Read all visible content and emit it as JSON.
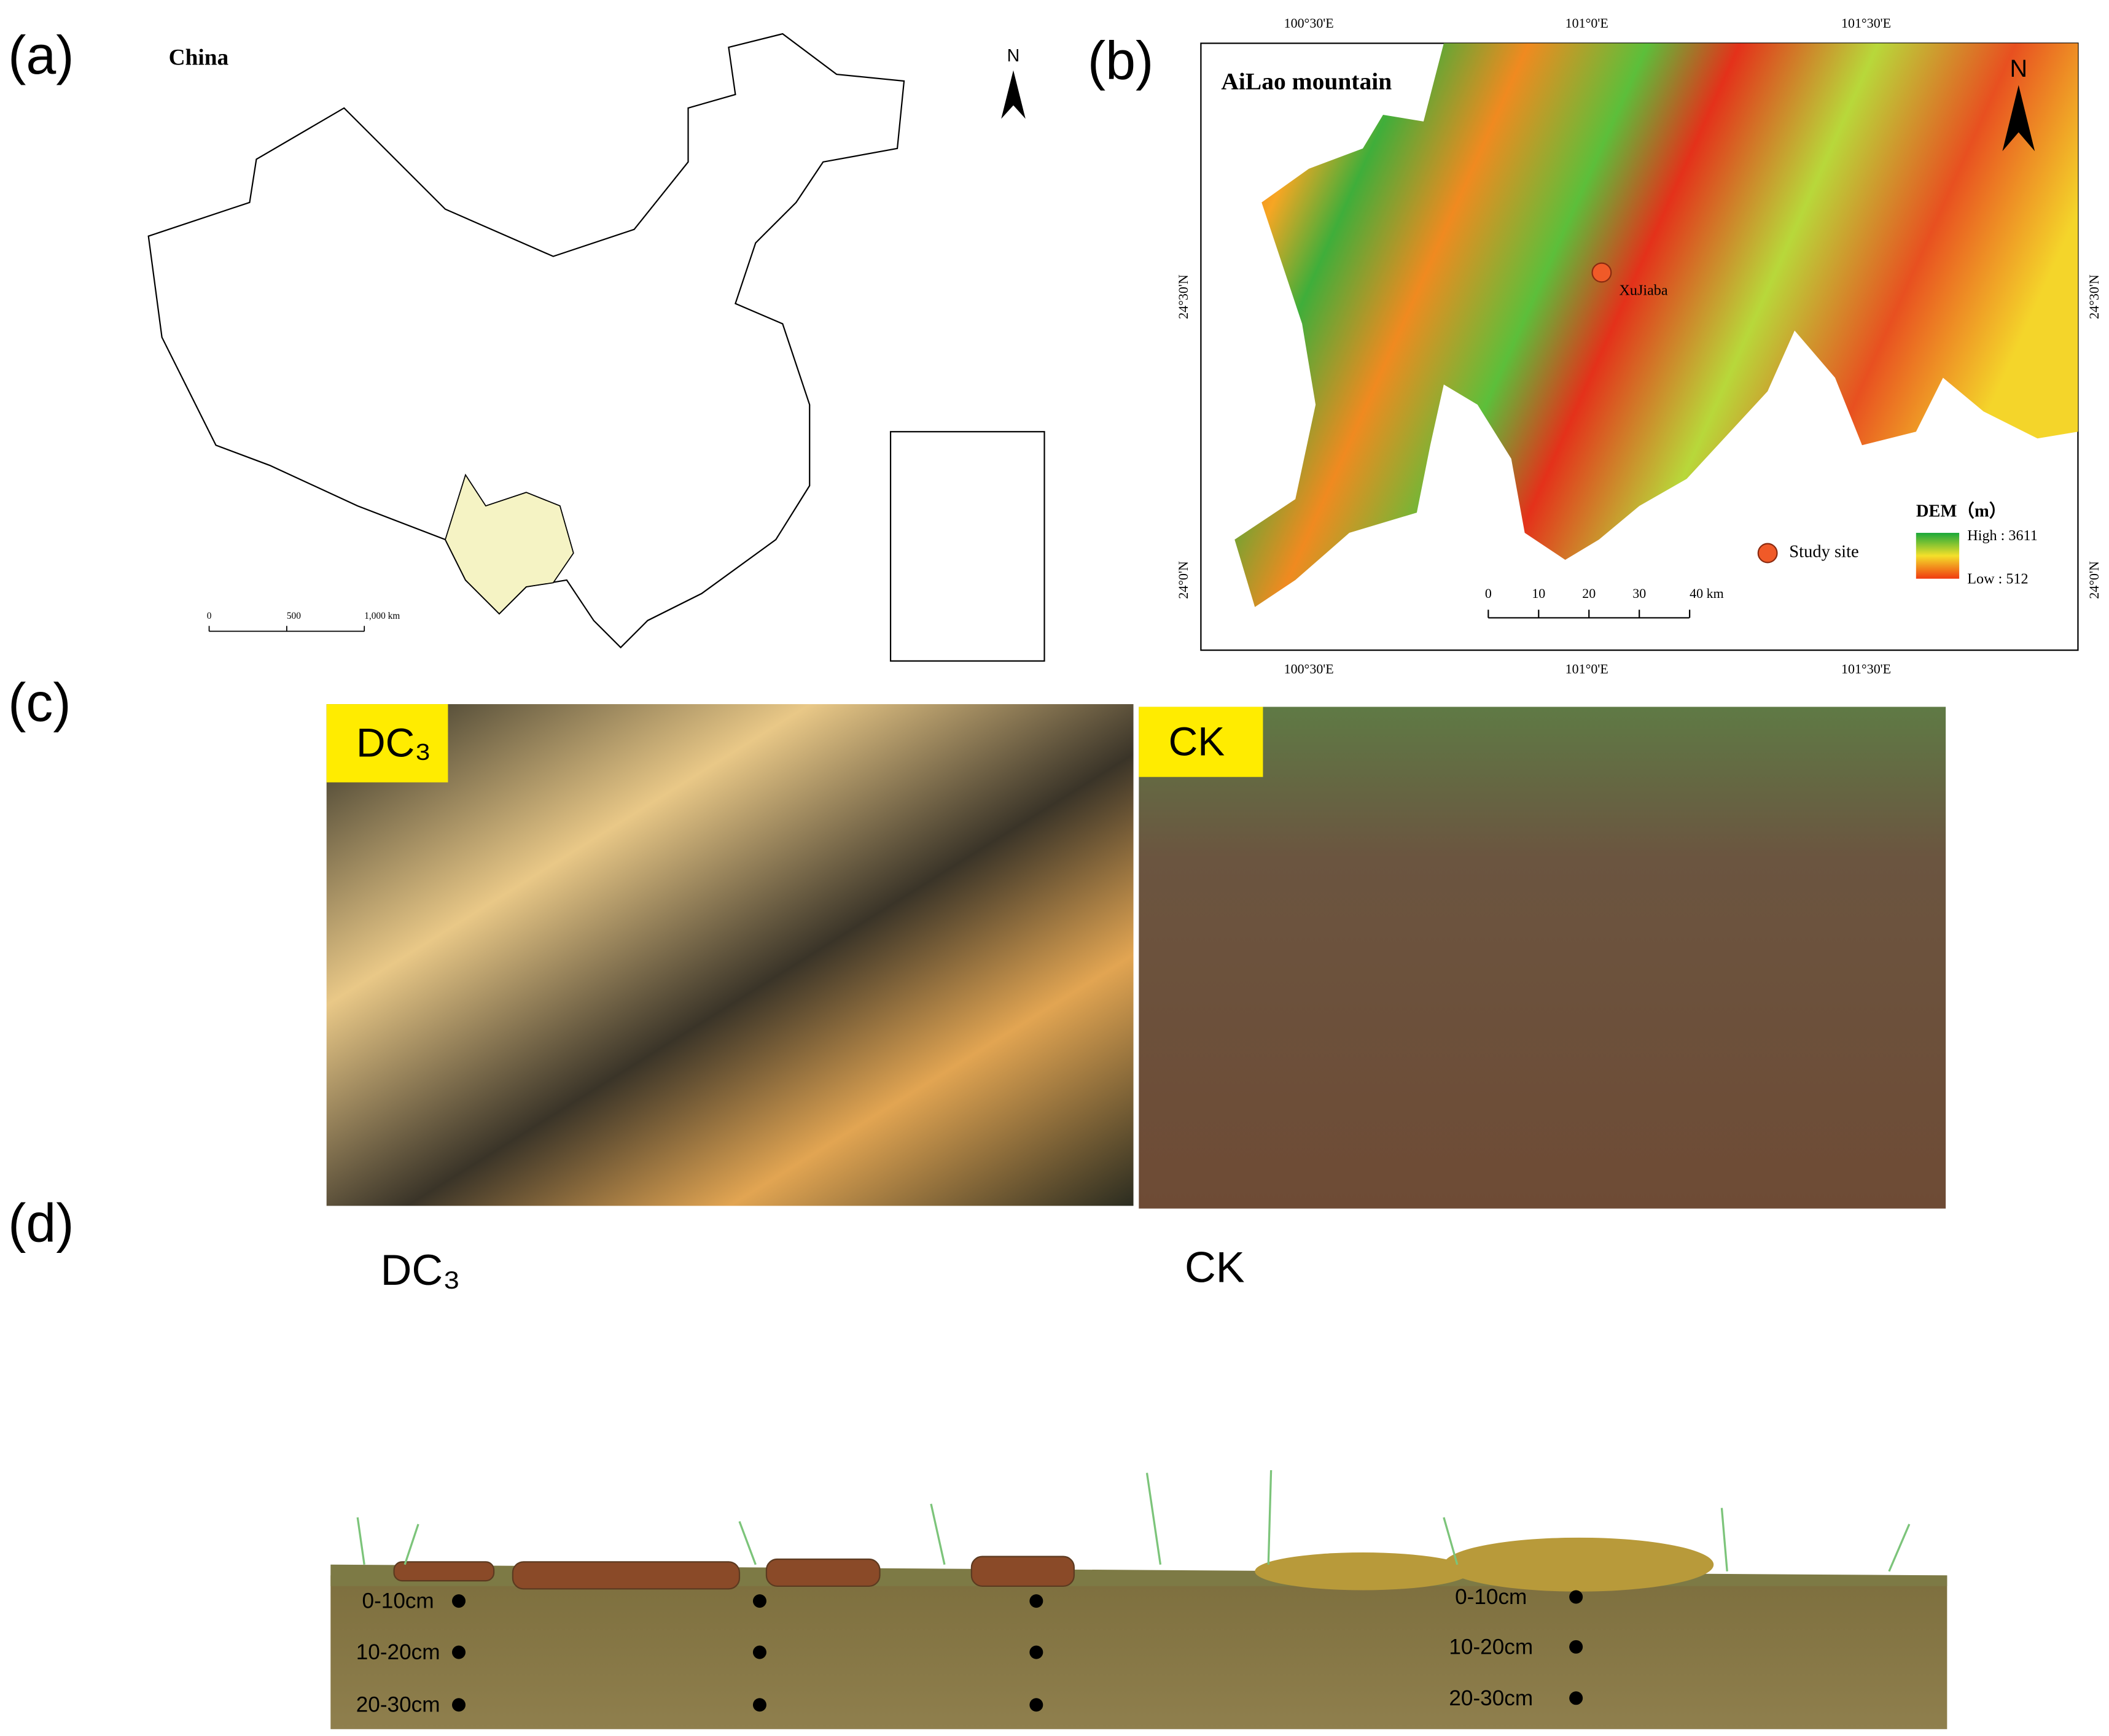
{
  "panel_a": {
    "label": "(a)",
    "title": "China",
    "north": "N",
    "scale_bar": [
      "0",
      "500",
      "1,000 km"
    ]
  },
  "panel_b": {
    "label": "(b)",
    "title": "AiLao mountain",
    "north": "N",
    "top_longitudes": [
      "100°30'E",
      "101°0'E",
      "101°30'E"
    ],
    "bottom_longitudes": [
      "100°30'E",
      "101°0'E",
      "101°30'E"
    ],
    "left_latitudes": [
      "24°30'N",
      "24°0'N"
    ],
    "right_latitudes": [
      "24°30'N",
      "24°0'N"
    ],
    "site": "XuJiaba",
    "legend": {
      "study_site": "Study site",
      "dem_title": "DEM（m）",
      "high": "High : 3611",
      "low": "Low : 512"
    },
    "scale_bar": [
      "0",
      "10",
      "20",
      "30",
      "40 km"
    ]
  },
  "panel_c": {
    "label": "(c)",
    "photos": [
      {
        "label": "DC₃"
      },
      {
        "label": "CK"
      }
    ]
  },
  "panel_d": {
    "label": "(d)",
    "profiles": [
      {
        "label": "DC₃",
        "depths": [
          "0-10cm",
          "10-20cm",
          "20-30cm"
        ]
      },
      {
        "label": "CK",
        "depths": [
          "0-10cm",
          "10-20cm",
          "20-30cm"
        ]
      }
    ]
  }
}
